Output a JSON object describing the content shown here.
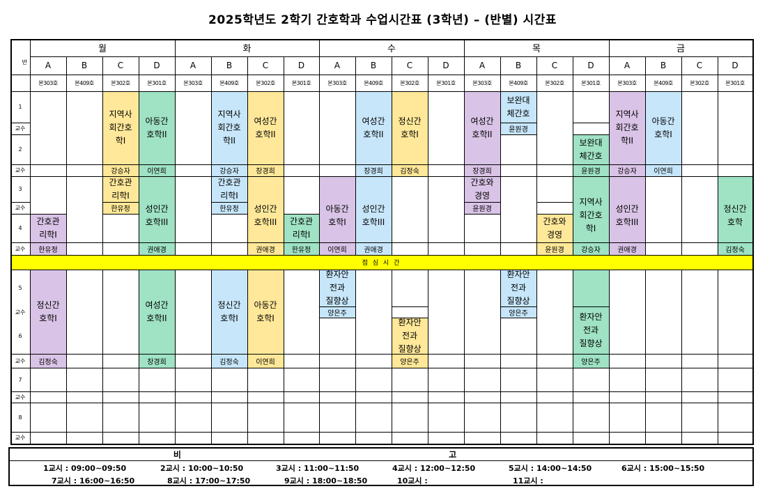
{
  "title": "2025학년도 2학기 간호학과 수업시간표 (3학년) – (반별) 시간표",
  "corner_label": "반",
  "days": [
    "월",
    "화",
    "수",
    "목",
    "금"
  ],
  "sections": [
    "A",
    "B",
    "C",
    "D"
  ],
  "rooms": [
    "본303호",
    "본409호",
    "본302호",
    "본301호"
  ],
  "rows": {
    "p1": "1",
    "p2": "2",
    "p3": "3",
    "p4": "4",
    "p5": "5",
    "p6": "6",
    "p7": "7",
    "p8": "8",
    "prof": "교수"
  },
  "lunch": "점 심 시 간",
  "colors": {
    "purple": "#d9c3e6",
    "yellow": "#ffe899",
    "green": "#9fe2c4",
    "blue": "#c7e6fa",
    "lunch": "#ffff00"
  },
  "courses": {
    "jiyeok1": "지역사\n회간호\n학I",
    "adong2": "아동간\n호학II",
    "jiyeok2": "지역사\n회간호\n학II",
    "yeoseong2": "여성간\n호학II",
    "yeoseong2b": "여성간\n호학II",
    "jeongsin1": "정신간\n호학I",
    "yeoseong2c": "여성간\n호학II",
    "bowan1": "보완대\n체간호",
    "bowan2": "보완대\n체간호",
    "jiyeok2b": "지역사\n회간호\n학II",
    "adong1": "아동간\n호학I",
    "gwanri1": "간호관\n리학I",
    "seongin3": "성인간\n호학III",
    "gwanri1b": "간호관\n리학I",
    "seongin3b": "성인간\n호학III",
    "gwanri1c": "간호관\n리학I",
    "adong1b": "아동간\n호학I",
    "seongin3c": "성인간\n호학III",
    "gyeongyeong1": "간호와\n경영",
    "jiyeok1b": "지역사\n회간호\n학I",
    "seongin3d": "성인간\n호학III",
    "jeongsin2": "정신간\n호학",
    "gwanri1d": "간호관\n리학I",
    "gyeongyeong2": "간호와\n경영",
    "jeongsin1b": "정신간\n호학I",
    "yeoseong2d": "여성간\n호학II",
    "jeongsin1c": "정신간\n호학I",
    "adong1c": "아동간\n호학I",
    "hwanja1": "환자안\n전과\n질향상",
    "hwanja2": "환자안\n전과\n질향상",
    "hwanja3": "환자안\n전과\n질향상",
    "hwanja4": "환자안\n전과\n질향상"
  },
  "teachers": {
    "t_yoon1": "윤원경",
    "t_kang1": "강승자",
    "t_lee1": "이연희",
    "t_kang2": "강승자",
    "t_jang1": "장경희",
    "t_jang2": "장경희",
    "t_kim1": "김정숙",
    "t_jang3": "장경희",
    "t_yoon2": "윤원경",
    "t_kang3": "강승자",
    "t_lee2": "이연희",
    "t_han1": "한유정",
    "t_han2": "한유정",
    "t_yoon3": "윤원경",
    "t_han3": "한유정",
    "t_kwon1": "권애경",
    "t_kwon2": "권애경",
    "t_han4": "한유정",
    "t_lee3": "이연희",
    "t_kwon3": "권애경",
    "t_yoon4": "윤원경",
    "t_kang4": "강승자",
    "t_kwon4": "권애경",
    "t_kim2": "김정숙",
    "t_yang1": "양은주",
    "t_yang2": "양은주",
    "t_kim3": "김정숙",
    "t_jang4": "장경희",
    "t_kim4": "김정숙",
    "t_lee4": "이연희",
    "t_yang3": "양은주",
    "t_yang4": "양은주"
  },
  "remarks": {
    "title": "비 고",
    "periods": [
      "1교시 : 09:00~09:50",
      "2교시 : 10:00~10:50",
      "3교시 : 11:00~11:50",
      "4교시 : 12:00~12:50",
      "5교시 : 14:00~14:50",
      "6교시 : 15:00~15:50",
      "7교시 : 16:00~16:50",
      "8교시 : 17:00~17:50",
      "9교시 : 18:00~18:50",
      "10교시 :",
      "11교시 :"
    ]
  }
}
